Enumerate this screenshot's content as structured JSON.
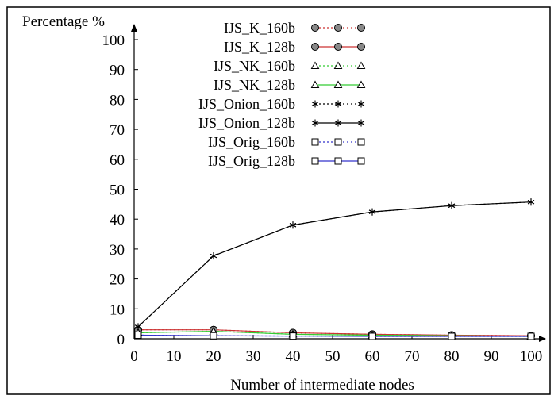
{
  "chart_data": {
    "type": "line",
    "title": "",
    "xlabel": "Number of intermediate nodes",
    "ylabel": "Percentage %",
    "x": [
      1,
      20,
      40,
      60,
      80,
      100
    ],
    "xlim": [
      0,
      100
    ],
    "ylim": [
      0,
      100
    ],
    "xticks": [
      0,
      10,
      20,
      30,
      40,
      50,
      60,
      70,
      80,
      90,
      100
    ],
    "yticks": [
      0,
      10,
      20,
      30,
      40,
      50,
      60,
      70,
      80,
      90,
      100
    ],
    "grid": false,
    "legend_position": "top-left",
    "series": [
      {
        "name": "IJS_K_160b",
        "values": [
          3.0,
          3.0,
          2.0,
          1.5,
          1.2,
          1.0
        ],
        "color": "#cc3333",
        "marker": "circle",
        "dash": "dotted"
      },
      {
        "name": "IJS_K_128b",
        "values": [
          3.0,
          3.0,
          2.0,
          1.5,
          1.2,
          1.0
        ],
        "color": "#cc3333",
        "marker": "circle",
        "dash": "solid"
      },
      {
        "name": "IJS_NK_160b",
        "values": [
          2.0,
          2.5,
          1.5,
          1.2,
          1.0,
          0.8
        ],
        "color": "#33cc33",
        "marker": "triangle",
        "dash": "dotted"
      },
      {
        "name": "IJS_NK_128b",
        "values": [
          2.0,
          2.5,
          1.5,
          1.2,
          1.0,
          0.8
        ],
        "color": "#33cc33",
        "marker": "triangle",
        "dash": "solid"
      },
      {
        "name": "IJS_Onion_160b",
        "values": [
          4.0,
          27.7,
          38.0,
          42.4,
          44.5,
          45.7
        ],
        "color": "#000000",
        "marker": "star",
        "dash": "dotted"
      },
      {
        "name": "IJS_Onion_128b",
        "values": [
          4.0,
          27.7,
          38.0,
          42.4,
          44.5,
          45.7
        ],
        "color": "#000000",
        "marker": "star",
        "dash": "solid"
      },
      {
        "name": "IJS_Orig_160b",
        "values": [
          1.2,
          1.0,
          0.9,
          0.8,
          0.8,
          0.8
        ],
        "color": "#3333cc",
        "marker": "square",
        "dash": "dotted"
      },
      {
        "name": "IJS_Orig_128b",
        "values": [
          1.2,
          1.0,
          0.9,
          0.8,
          0.8,
          0.8
        ],
        "color": "#3333cc",
        "marker": "square",
        "dash": "solid"
      }
    ]
  }
}
